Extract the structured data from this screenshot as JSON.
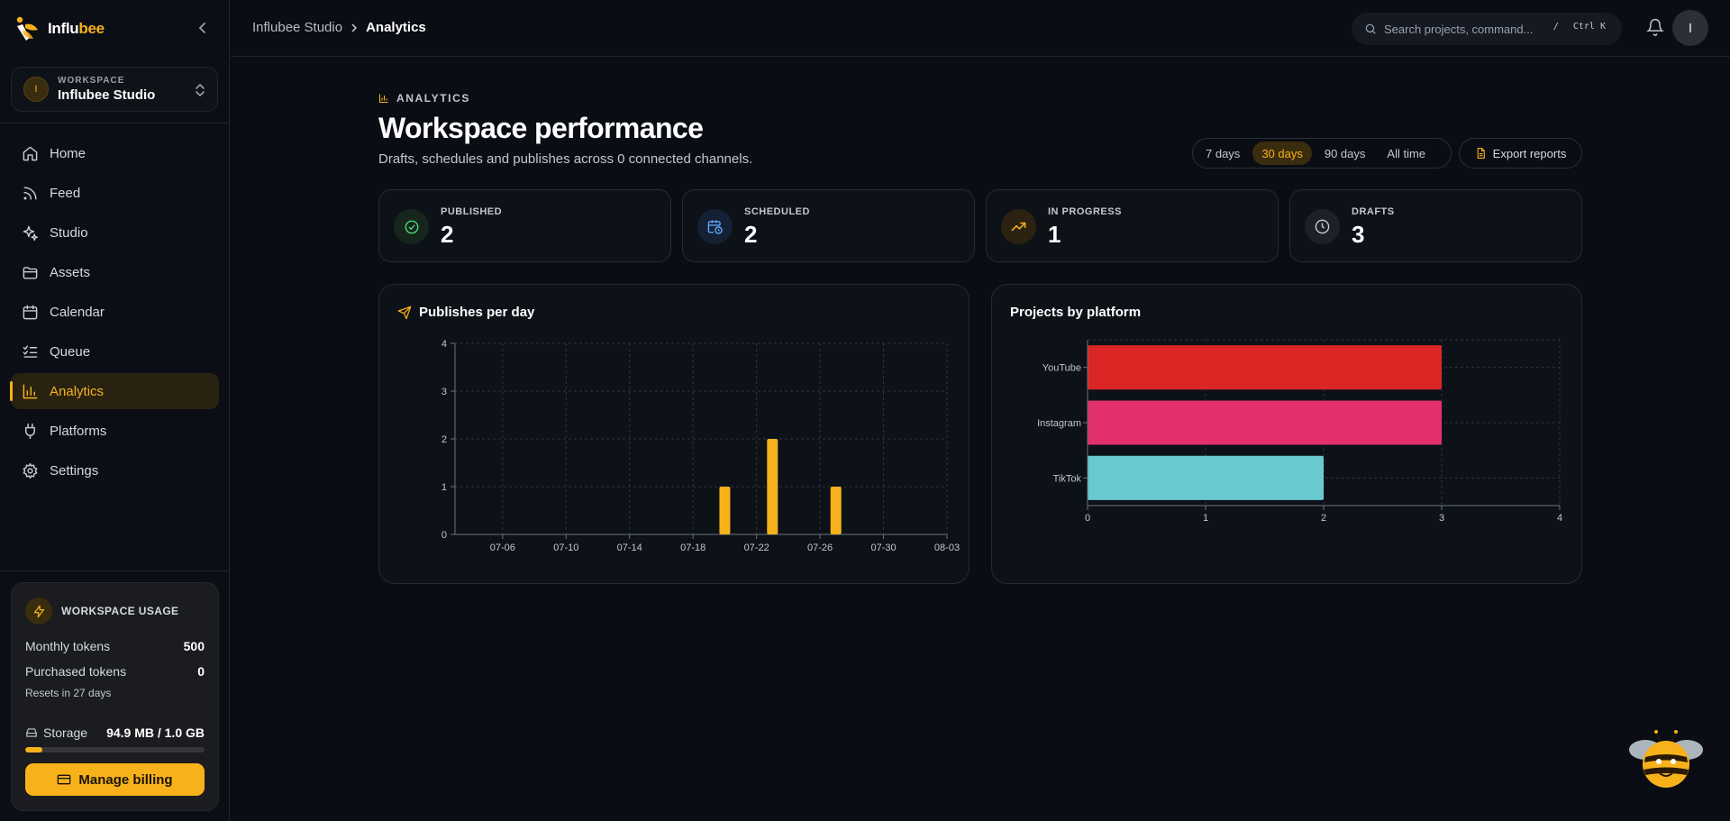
{
  "brand": {
    "name_part1": "Influ",
    "name_part2": "bee"
  },
  "workspace": {
    "label": "WORKSPACE",
    "name": "Influbee Studio",
    "initial": "I"
  },
  "nav": [
    {
      "id": "home",
      "label": "Home",
      "icon": "home-icon"
    },
    {
      "id": "feed",
      "label": "Feed",
      "icon": "rss-icon"
    },
    {
      "id": "studio",
      "label": "Studio",
      "icon": "sparkles-icon"
    },
    {
      "id": "assets",
      "label": "Assets",
      "icon": "folder-icon"
    },
    {
      "id": "calendar",
      "label": "Calendar",
      "icon": "calendar-icon"
    },
    {
      "id": "queue",
      "label": "Queue",
      "icon": "list-checks-icon"
    },
    {
      "id": "analytics",
      "label": "Analytics",
      "icon": "bar-chart-icon",
      "active": true
    },
    {
      "id": "platforms",
      "label": "Platforms",
      "icon": "plug-icon"
    },
    {
      "id": "settings",
      "label": "Settings",
      "icon": "gear-icon"
    }
  ],
  "usage": {
    "title": "WORKSPACE USAGE",
    "monthly_label": "Monthly tokens",
    "monthly_value": "500",
    "purchased_label": "Purchased tokens",
    "purchased_value": "0",
    "reset_text": "Resets in 27 days",
    "storage_label": "Storage",
    "storage_value": "94.9 MB / 1.0 GB",
    "storage_fraction": 0.093,
    "billing_label": "Manage billing"
  },
  "topbar": {
    "breadcrumb_root": "Influbee Studio",
    "breadcrumb_current": "Analytics",
    "search_placeholder": "Search projects, command...",
    "kbd_slash": "/",
    "kbd_shortcut": "Ctrl K",
    "user_initial": "I"
  },
  "header": {
    "eyebrow": "ANALYTICS",
    "title": "Workspace performance",
    "subtitle": "Drafts, schedules and publishes across 0 connected channels."
  },
  "range": {
    "options": [
      "7 days",
      "30 days",
      "90 days",
      "All time"
    ],
    "selected": "30 days"
  },
  "export_label": "Export reports",
  "stats": [
    {
      "label": "PUBLISHED",
      "value": "2",
      "icon": "check-circle-icon",
      "color": "#4ade80"
    },
    {
      "label": "SCHEDULED",
      "value": "2",
      "icon": "calendar-clock-icon",
      "color": "#60a5fa"
    },
    {
      "label": "IN PROGRESS",
      "value": "1",
      "icon": "trending-up-icon",
      "color": "#f7b21b"
    },
    {
      "label": "DRAFTS",
      "value": "3",
      "icon": "clock-icon",
      "color": "#c3c7cf"
    }
  ],
  "chart_data": [
    {
      "type": "bar",
      "title": "Publishes per day",
      "x_ticks": [
        "07-06",
        "07-10",
        "07-14",
        "07-18",
        "07-22",
        "07-26",
        "07-30",
        "08-03"
      ],
      "x_range": [
        "07-03",
        "08-03"
      ],
      "bars": [
        {
          "x": "07-20",
          "y": 1
        },
        {
          "x": "07-23",
          "y": 2
        },
        {
          "x": "07-27",
          "y": 1
        }
      ],
      "ylim": [
        0,
        4
      ],
      "y_ticks": [
        0,
        1,
        2,
        3,
        4
      ],
      "grid": true,
      "color": "#f7b21b"
    },
    {
      "type": "bar",
      "orientation": "horizontal",
      "title": "Projects by platform",
      "categories": [
        "YouTube",
        "Instagram",
        "TikTok"
      ],
      "values": [
        3,
        3,
        2
      ],
      "colors": [
        "#dc2626",
        "#e1306c",
        "#69c9d0"
      ],
      "xlim": [
        0,
        4
      ],
      "x_ticks": [
        0,
        1,
        2,
        3,
        4
      ],
      "grid": true
    }
  ]
}
